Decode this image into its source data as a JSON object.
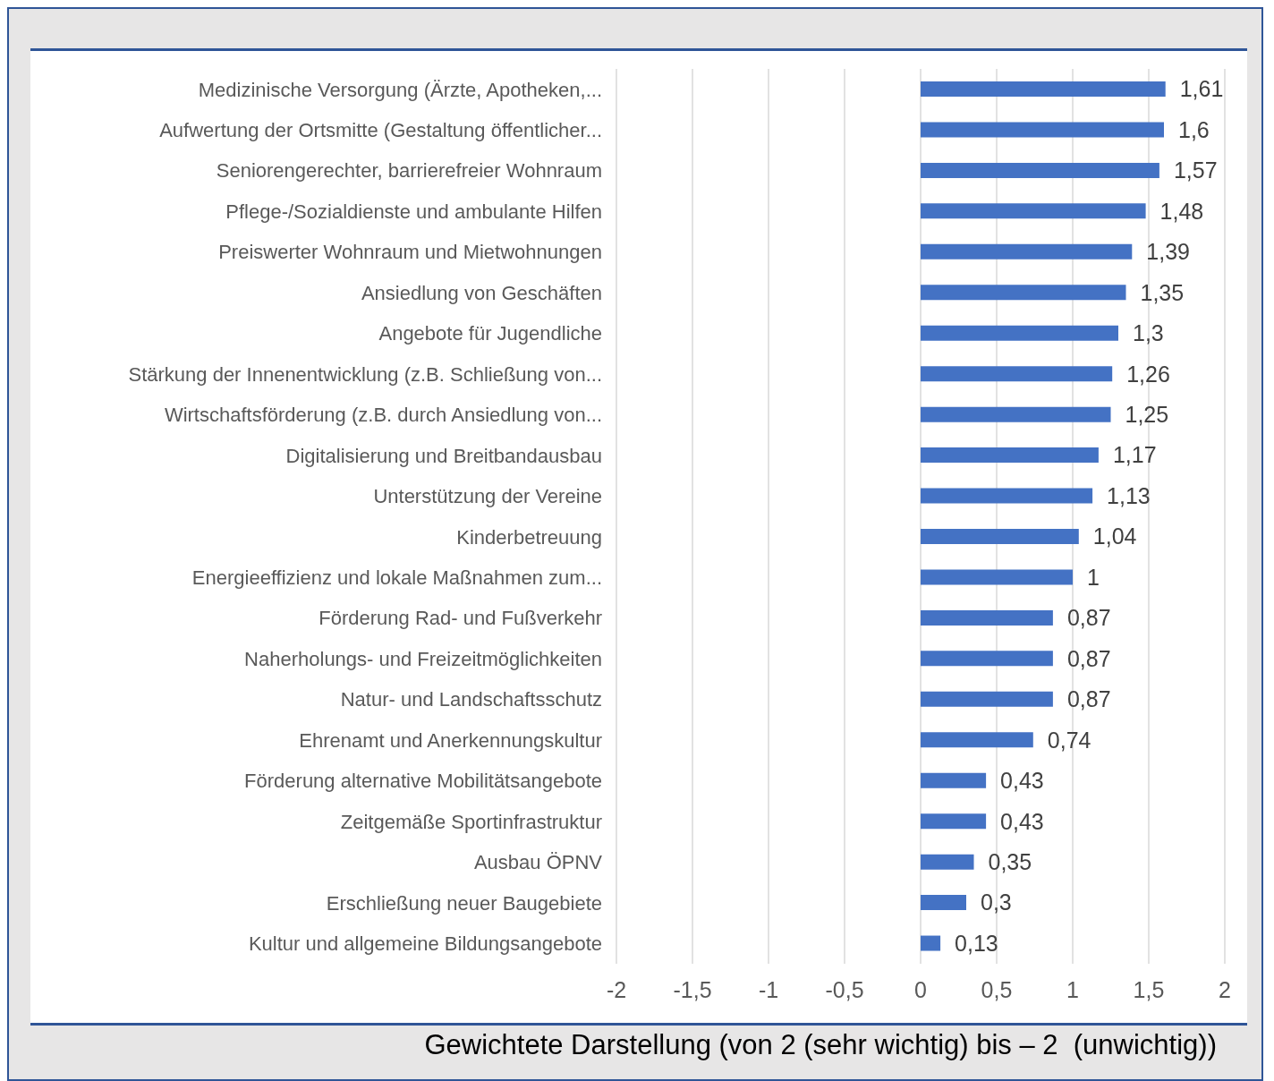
{
  "chart_data": {
    "type": "bar",
    "orientation": "horizontal",
    "xlabel": "Gewichtete Darstellung (von 2 (sehr wichtig) bis – 2  (unwichtig))",
    "categories": [
      "Medizinische Versorgung (Ärzte, Apotheken,...",
      "Aufwertung der Ortsmitte (Gestaltung öffentlicher...",
      "Seniorengerechter, barrierefreier Wohnraum",
      "Pflege-/Sozialdienste und ambulante Hilfen",
      "Preiswerter Wohnraum und Mietwohnungen",
      "Ansiedlung von Geschäften",
      "Angebote für Jugendliche",
      "Stärkung der Innenentwicklung (z.B. Schließung von...",
      "Wirtschaftsförderung (z.B. durch Ansiedlung von...",
      "Digitalisierung und Breitbandausbau",
      "Unterstützung der Vereine",
      "Kinderbetreuung",
      "Energieeffizienz und lokale Maßnahmen zum...",
      "Förderung Rad- und Fußverkehr",
      "Naherholungs- und Freizeitmöglichkeiten",
      "Natur- und Landschaftsschutz",
      "Ehrenamt und Anerkennungskultur",
      "Förderung alternative Mobilitätsangebote",
      "Zeitgemäße Sportinfrastruktur",
      "Ausbau ÖPNV",
      "Erschließung neuer Baugebiete",
      "Kultur und allgemeine Bildungsangebote"
    ],
    "values": [
      1.61,
      1.6,
      1.57,
      1.48,
      1.39,
      1.35,
      1.3,
      1.26,
      1.25,
      1.17,
      1.13,
      1.04,
      1,
      0.87,
      0.87,
      0.87,
      0.74,
      0.43,
      0.43,
      0.35,
      0.3,
      0.13
    ],
    "value_labels": [
      "1,61",
      "1,6",
      "1,57",
      "1,48",
      "1,39",
      "1,35",
      "1,3",
      "1,26",
      "1,25",
      "1,17",
      "1,13",
      "1,04",
      "1",
      "0,87",
      "0,87",
      "0,87",
      "0,74",
      "0,43",
      "0,43",
      "0,35",
      "0,3",
      "0,13"
    ],
    "color": "#4472c4",
    "xlim": [
      -2,
      2
    ],
    "xticks": [
      -2,
      {
        "value": -1.5,
        "label": "-1,5"
      },
      -1,
      {
        "value": -0.5,
        "label": "-0,5"
      },
      0,
      {
        "value": 0.5,
        "label": "0,5"
      },
      1,
      {
        "value": 1.5,
        "label": "1,5"
      },
      2
    ],
    "grid": "x",
    "legend": false
  }
}
